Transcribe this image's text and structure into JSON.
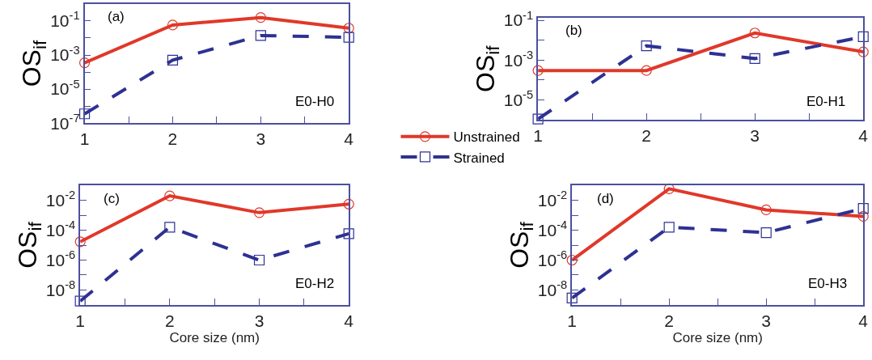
{
  "chart_data": [
    {
      "type": "line",
      "title": "(a)",
      "ylabel": "OS$_{if}$",
      "log": "y",
      "x": [
        1,
        2,
        3,
        4
      ],
      "xlim": [
        1,
        4
      ],
      "ylim": [
        1e-07,
        1
      ],
      "xticks": [
        1,
        {
          "value": 1.5,
          "label": null
        },
        2,
        {
          "value": 2.5,
          "label": null
        },
        3,
        {
          "value": 3.5,
          "label": null
        },
        4
      ],
      "yticks": [
        {
          "value": 1e-07,
          "label": "10$^{-7}$"
        },
        {
          "value": 1e-06,
          "label": null
        },
        {
          "value": 1e-05,
          "label": "10$^{-5}$"
        },
        {
          "value": 0.0001,
          "label": null
        },
        {
          "value": 0.001,
          "label": "10$^{-3}$"
        },
        {
          "value": 0.01,
          "label": null
        },
        {
          "value": 0.1,
          "label": "10$^{-1}$"
        }
      ],
      "legend": "right",
      "annotations": [
        "E0-H0"
      ],
      "series": [
        {
          "name": "Unstrained",
          "color": "#e0382a",
          "marker": "circle",
          "line_style": "solid",
          "values": [
            0.00035,
            0.058,
            0.16,
            0.038
          ]
        },
        {
          "name": "Strained",
          "color": "#2e3192",
          "marker": "square",
          "line_style": "dashed",
          "values": [
            3.5e-07,
            0.0005,
            0.014,
            0.011
          ]
        }
      ]
    },
    {
      "type": "line",
      "title": "(b)",
      "ylabel": "OS$_{if}$",
      "log": "y",
      "x": [
        1,
        2,
        3,
        4
      ],
      "xlim": [
        1,
        4
      ],
      "ylim": [
        1e-06,
        0.13
      ],
      "xticks": [
        1,
        {
          "value": 1.5,
          "label": null
        },
        2,
        {
          "value": 2.5,
          "label": null
        },
        3,
        {
          "value": 3.5,
          "label": null
        },
        4
      ],
      "yticks": [
        {
          "value": 1e-05,
          "label": "10$^{-5}$"
        },
        {
          "value": 0.0001,
          "label": null
        },
        {
          "value": 0.001,
          "label": "10$^{-3}$"
        },
        {
          "value": 0.01,
          "label": null
        },
        {
          "value": 0.1,
          "label": "10$^{-1}$"
        }
      ],
      "annotations": [
        "E0-H1"
      ],
      "series": [
        {
          "color": "#e0382a",
          "marker": "circle",
          "line_style": "solid",
          "values": [
            0.0003,
            0.0003,
            0.023,
            0.0026
          ]
        },
        {
          "color": "#2e3192",
          "marker": "square",
          "line_style": "dashed",
          "values": [
            1.1e-06,
            0.0052,
            0.0012,
            0.015
          ]
        }
      ]
    },
    {
      "type": "line",
      "title": "(c)",
      "ylabel": "OS$_{if}$",
      "xlabel": "Core size (nm)",
      "log": "y",
      "x": [
        1,
        2,
        3,
        4
      ],
      "xlim": [
        1,
        4
      ],
      "ylim": [
        1e-09,
        0.1
      ],
      "xticks": [
        1,
        {
          "value": 1.5,
          "label": null
        },
        2,
        {
          "value": 2.5,
          "label": null
        },
        3,
        {
          "value": 3.5,
          "label": null
        },
        4
      ],
      "yticks": [
        {
          "value": 1e-08,
          "label": "10$^{-8}$"
        },
        {
          "value": 1e-07,
          "label": null
        },
        {
          "value": 1e-06,
          "label": "10$^{-6}$"
        },
        {
          "value": 1e-05,
          "label": null
        },
        {
          "value": 0.0001,
          "label": "10$^{-4}$"
        },
        {
          "value": 0.001,
          "label": null
        },
        {
          "value": 0.01,
          "label": "10$^{-2}$"
        }
      ],
      "annotations": [
        "E0-H2"
      ],
      "series": [
        {
          "color": "#e0382a",
          "marker": "circle",
          "line_style": "solid",
          "values": [
            1.7e-05,
            0.02,
            0.0015,
            0.0056
          ]
        },
        {
          "color": "#2e3192",
          "marker": "square",
          "line_style": "dashed",
          "values": [
            1.8e-09,
            0.00016,
            1e-06,
            5.9e-05
          ]
        }
      ]
    },
    {
      "type": "line",
      "title": "(d)",
      "ylabel": "OS$_{if}$",
      "xlabel": "Core size (nm)",
      "log": "y",
      "x": [
        1,
        2,
        3,
        4
      ],
      "xlim": [
        1,
        4
      ],
      "ylim": [
        1e-09,
        0.1
      ],
      "xticks": [
        1,
        {
          "value": 1.5,
          "label": null
        },
        2,
        {
          "value": 2.5,
          "label": null
        },
        3,
        {
          "value": 3.5,
          "label": null
        },
        4
      ],
      "yticks": [
        {
          "value": 1e-08,
          "label": "10$^{-8}$"
        },
        {
          "value": 1e-07,
          "label": null
        },
        {
          "value": 1e-06,
          "label": "10$^{-6}$"
        },
        {
          "value": 1e-05,
          "label": null
        },
        {
          "value": 0.0001,
          "label": "10$^{-4}$"
        },
        {
          "value": 0.001,
          "label": null
        },
        {
          "value": 0.01,
          "label": "10$^{-2}$"
        }
      ],
      "annotations": [
        "E0-H3"
      ],
      "series": [
        {
          "color": "#e0382a",
          "marker": "circle",
          "line_style": "solid",
          "values": [
            1e-06,
            0.059,
            0.0023,
            0.00085
          ]
        },
        {
          "color": "#2e3192",
          "marker": "square",
          "line_style": "dashed",
          "values": [
            2.9e-09,
            0.00016,
            6.9e-05,
            0.0029
          ]
        }
      ]
    }
  ]
}
